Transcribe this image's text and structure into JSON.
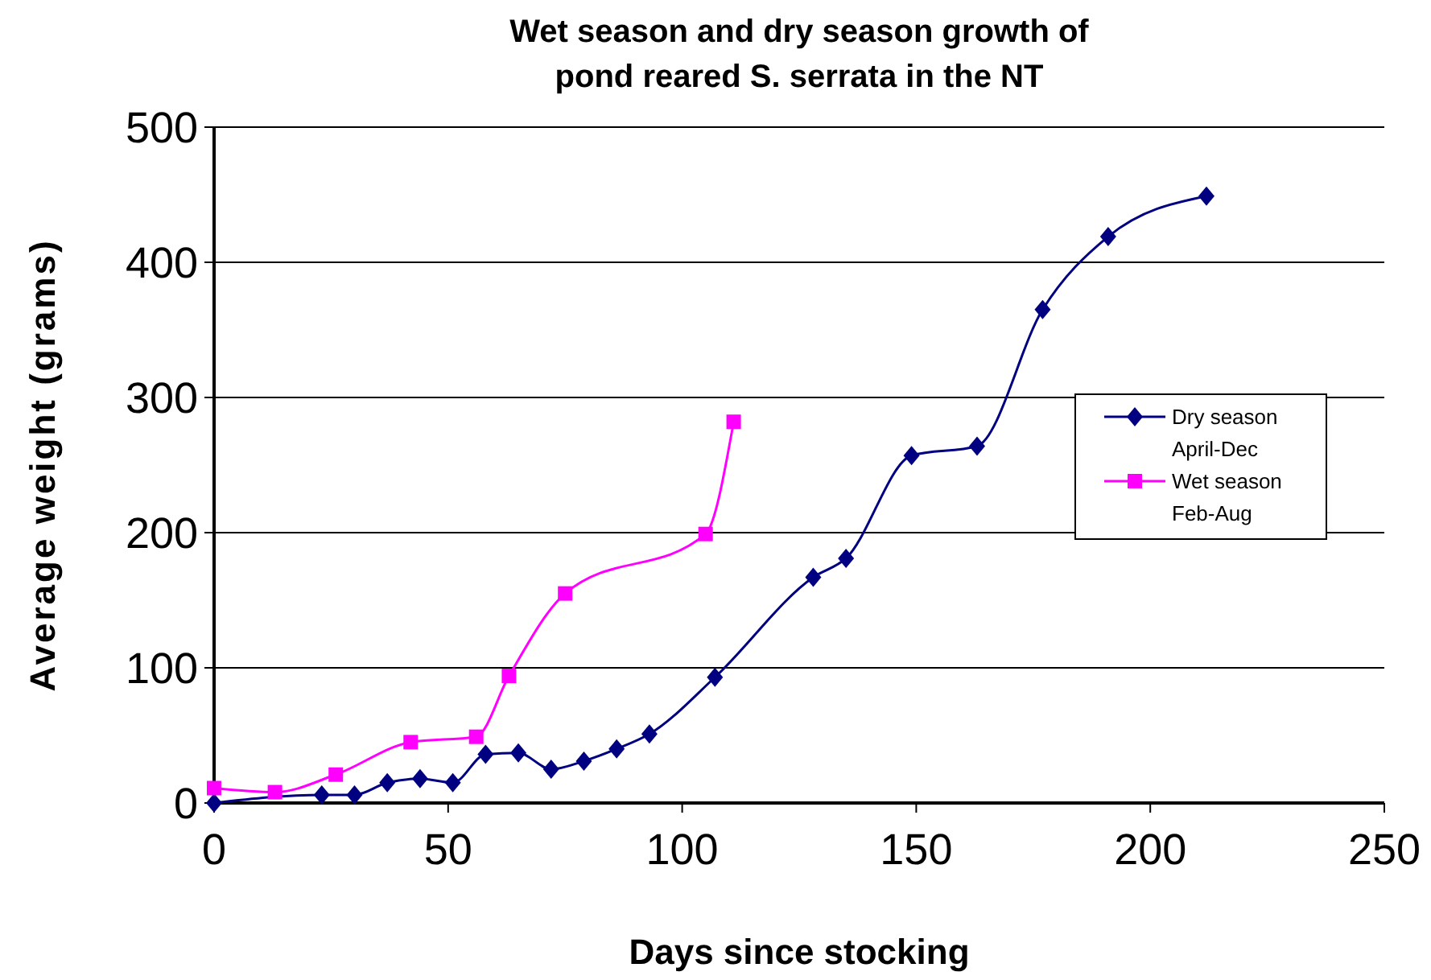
{
  "chart_data": {
    "type": "line",
    "title": "Wet season and dry season growth of pond reared S. serrata in the NT",
    "xlabel": "Days since stocking",
    "ylabel": "Average weight (grams)",
    "xlim": [
      0,
      250
    ],
    "xticks": [
      0,
      50,
      100,
      150,
      200,
      250
    ],
    "ylim": [
      0,
      500
    ],
    "yticks": [
      0,
      100,
      200,
      300,
      400,
      500
    ],
    "grid": "y",
    "legend": "right",
    "series": [
      {
        "name": "Dry season April-Dec",
        "color": "#000080",
        "marker": "diamond",
        "x": [
          0,
          23,
          30,
          37,
          44,
          51,
          58,
          65,
          72,
          79,
          86,
          93,
          107,
          128,
          135,
          149,
          163,
          177,
          191,
          212
        ],
        "values": [
          0,
          6,
          6,
          15,
          18,
          15,
          36,
          37,
          25,
          31,
          40,
          51,
          93,
          167,
          181,
          257,
          264,
          365,
          419,
          449
        ]
      },
      {
        "name": "Wet season Feb-Aug",
        "color": "#ff00ff",
        "marker": "square",
        "x": [
          0,
          13,
          26,
          42,
          56,
          63,
          75,
          105,
          111
        ],
        "values": [
          11,
          8,
          21,
          45,
          49,
          94,
          155,
          199,
          282
        ]
      }
    ]
  }
}
